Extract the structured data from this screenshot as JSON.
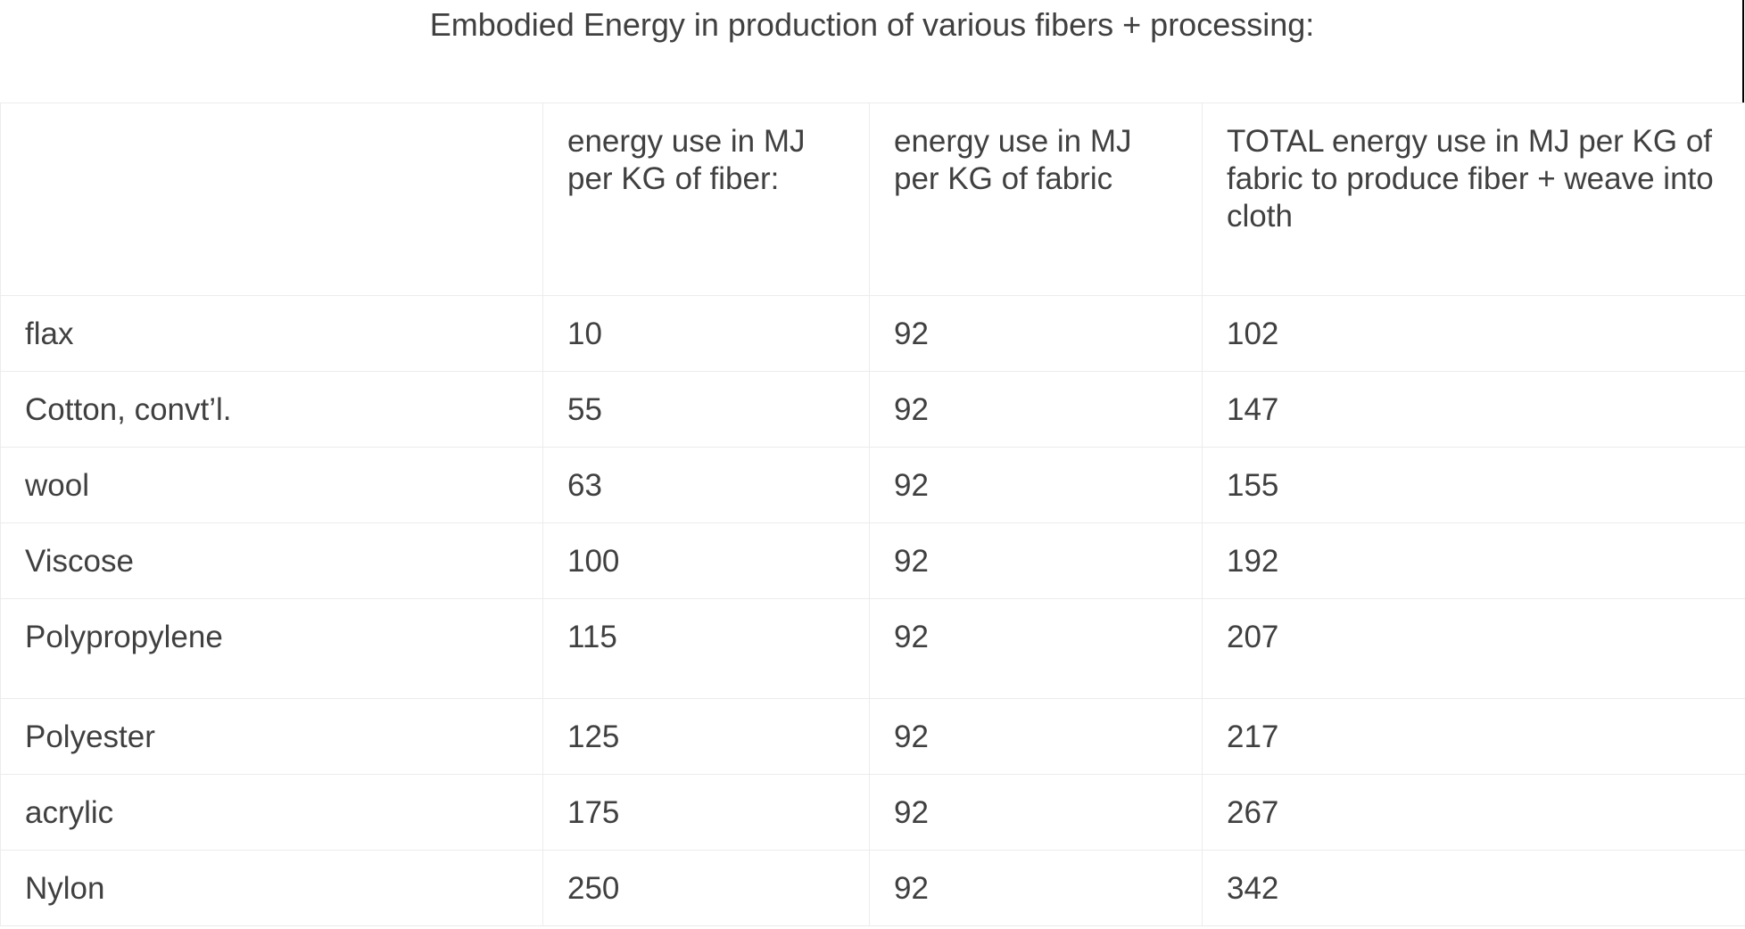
{
  "title": "Embodied Energy in production of various fibers + processing:",
  "table": {
    "headers": [
      "",
      "energy use in MJ per KG of fiber:",
      "energy use in MJ per KG of fabric",
      "TOTAL energy use in MJ per KG of fabric to produce fiber + weave into cloth"
    ],
    "rows": [
      [
        "flax",
        "10",
        "92",
        "102"
      ],
      [
        "Cotton, convt’l.",
        "55",
        "92",
        "147"
      ],
      [
        "wool",
        "63",
        "92",
        "155"
      ],
      [
        "Viscose",
        "100",
        "92",
        "192"
      ],
      [
        "Polypropylene",
        "115",
        "92",
        "207"
      ],
      [
        "Polyester",
        "125",
        "92",
        "217"
      ],
      [
        "acrylic",
        "175",
        "92",
        "267"
      ],
      [
        "Nylon",
        "250",
        "92",
        "342"
      ]
    ]
  }
}
